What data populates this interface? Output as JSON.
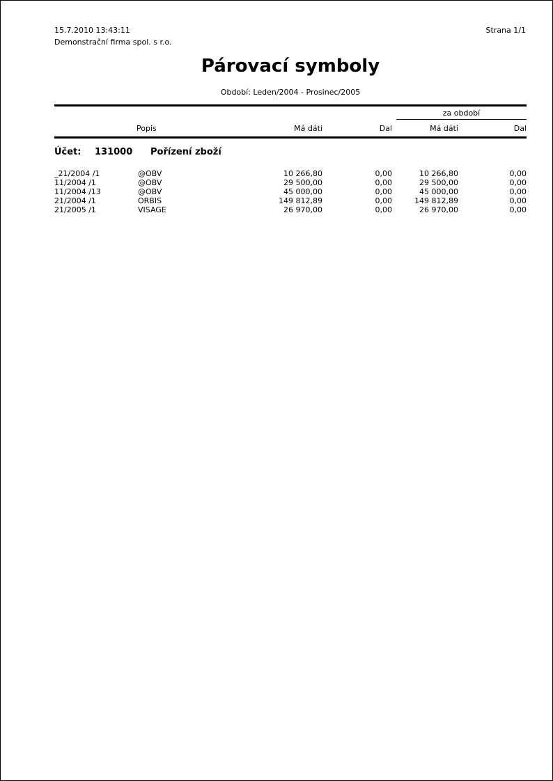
{
  "colors": {
    "text": "#000000",
    "paper": "#ffffff"
  },
  "header": {
    "datetime": "15.7.2010 13:43:11",
    "company": "Demonstrační firma spol. s r.o.",
    "page_label": "Strana 1/1",
    "title": "Párovací symboly",
    "subtitle": "Období: Leden/2004 - Prosinec/2005"
  },
  "table": {
    "group_header": "za období",
    "headers": {
      "popis": "Popis",
      "ma_dati": "Má dáti",
      "dal": "Dal",
      "ma_dati_za_obdobi": "Má dáti",
      "dal_za_obdobi": "Dal"
    },
    "account": {
      "label": "Účet:",
      "number": "131000",
      "name": "Pořízení zboží"
    },
    "rows": [
      {
        "symbol": "_21/2004 /1",
        "popis": "@OBV",
        "ma_dati": "10 266,80",
        "dal": "0,00",
        "ma_dati_za_obdobi": "10 266,80",
        "dal_za_obdobi": "0,00"
      },
      {
        "symbol": "11/2004 /1",
        "popis": "@OBV",
        "ma_dati": "29 500,00",
        "dal": "0,00",
        "ma_dati_za_obdobi": "29 500,00",
        "dal_za_obdobi": "0,00"
      },
      {
        "symbol": "11/2004 /13",
        "popis": "@OBV",
        "ma_dati": "45 000,00",
        "dal": "0,00",
        "ma_dati_za_obdobi": "45 000,00",
        "dal_za_obdobi": "0,00"
      },
      {
        "symbol": "21/2004 /1",
        "popis": "ORBIS",
        "ma_dati": "149 812,89",
        "dal": "0,00",
        "ma_dati_za_obdobi": "149 812,89",
        "dal_za_obdobi": "0,00"
      },
      {
        "symbol": "21/2005 /1",
        "popis": "VISAGE",
        "ma_dati": "26 970,00",
        "dal": "0,00",
        "ma_dati_za_obdobi": "26 970,00",
        "dal_za_obdobi": "0,00"
      }
    ]
  }
}
